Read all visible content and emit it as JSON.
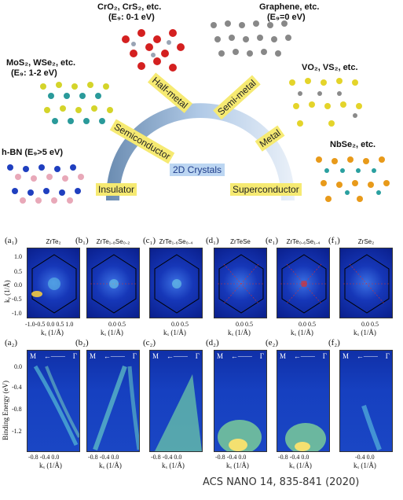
{
  "top": {
    "materials": [
      {
        "name": "CrO₂, CrS₂, etc.",
        "eg": "(E₉: 0-1 eV)"
      },
      {
        "name": "Graphene, etc.",
        "eg": "(E₉=0 eV)"
      },
      {
        "name": "MoS₂, WSe₂, etc.",
        "eg": "(E₉: 1-2 eV)"
      },
      {
        "name": "VO₂, VS₂, etc.",
        "eg": ""
      },
      {
        "name": "h-BN (E₉>5 eV)",
        "eg": ""
      },
      {
        "name": "NbSe₂, etc.",
        "eg": ""
      }
    ],
    "arc_labels": [
      "Half-metal",
      "Semi-metal",
      "Semiconductor",
      "Metal",
      "Insulator",
      "Superconductor"
    ],
    "center": "2D Crystals"
  },
  "panels": {
    "row1_labels": [
      "(a₁)",
      "(b₁)",
      "(c₁)",
      "(d₁)",
      "(e₁)",
      "(f₁)"
    ],
    "row2_labels": [
      "(a₂)",
      "(b₂)",
      "(c₂)",
      "(d₂)",
      "(e₂)",
      "(f₂)"
    ],
    "titles": [
      "ZrTe₂",
      "ZrTe₁.₈Se₀.₂",
      "ZrTe₁.₆Se₀.₄",
      "ZrTeSe",
      "ZrTe₀.₆Se₁.₄",
      "ZrSe₂"
    ],
    "fs_yticks": [
      "1.0",
      "0.5",
      "0.0",
      "-0.5",
      "-1.0"
    ],
    "fs_ylabel": "kᵧ (1/Å)",
    "fs_xticks": [
      "-1.0-0.5 0.0 0.5 1.0",
      "0.0 0.5",
      "0.0 0.5",
      "0.0 0.5",
      "0.0 0.5",
      "0.0 0.5"
    ],
    "fs_xlabel": "kₓ (1/Å)",
    "disp_yticks": [
      "0.0",
      "-0.4",
      "-0.8",
      "-1.2"
    ],
    "disp_ylabel": "Binding Energy (eV)",
    "disp_xticks": [
      "-0.8 -0.4 0.0",
      "-0.8 -0.4 0.0",
      "-0.8 -0.4 0.0",
      "-0.8 -0.4 0.0",
      "-0.8 -0.4 0.0",
      "-0.4 0.0"
    ],
    "disp_xlabel": "kₓ (1/Å)",
    "m_label": "M",
    "gamma_label": "Γ",
    "arrow": "←——"
  },
  "citation": "ACS NANO 14,  835-841  (2020)"
}
